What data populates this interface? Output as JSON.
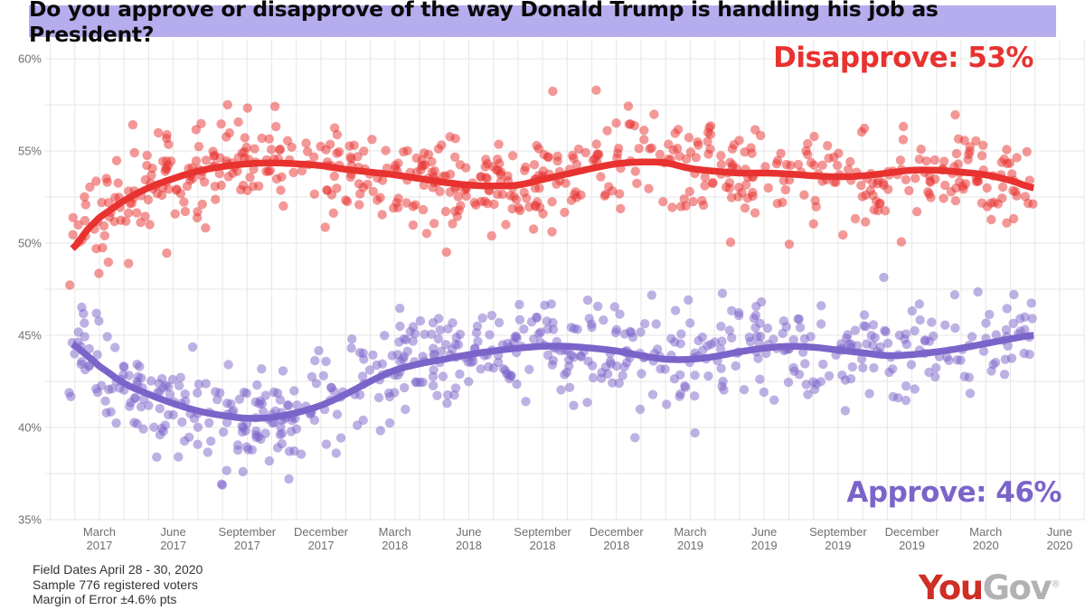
{
  "title": {
    "text": "Do you approve or disapprove of the way Donald Trump is handling his job as President?",
    "bg_color": "#b6adee"
  },
  "annotations": {
    "disapprove": {
      "label": "Disapprove: 53%",
      "color": "#e8322f"
    },
    "approve": {
      "label": "Approve: 46%",
      "color": "#7b64c9"
    }
  },
  "footer": {
    "lines": [
      "Field Dates April 28 - 30, 2020",
      "Sample 776 registered voters",
      "Margin of Error ±4.6% pts"
    ]
  },
  "logo": {
    "you": "You",
    "gov": "Gov",
    "reg": "®",
    "you_color": "#cf2e27",
    "gov_color": "#b2b2b4"
  },
  "chart_data": {
    "type": "scatter",
    "title": "Do you approve or disapprove of the way Donald Trump is handling his job as President?",
    "xlabel": "",
    "ylabel": "",
    "ylim": [
      35,
      60
    ],
    "x_unit": "months since January 2017",
    "x_range": [
      0,
      42
    ],
    "grid": {
      "show": true,
      "color": "#e6e6e6",
      "y_step_pct": 2.5,
      "x_step_months": 1
    },
    "axis_label_color": "#6f6f6f",
    "yticks": [
      {
        "v": 60,
        "label": "60%"
      },
      {
        "v": 55,
        "label": "55%"
      },
      {
        "v": 50,
        "label": "50%"
      },
      {
        "v": 45,
        "label": "45%"
      },
      {
        "v": 40,
        "label": "40%"
      },
      {
        "v": 35,
        "label": "35%"
      }
    ],
    "xticks": [
      {
        "m": 2,
        "line1": "March",
        "line2": "2017"
      },
      {
        "m": 5,
        "line1": "June",
        "line2": "2017"
      },
      {
        "m": 8,
        "line1": "September",
        "line2": "2017"
      },
      {
        "m": 11,
        "line1": "December",
        "line2": "2017"
      },
      {
        "m": 14,
        "line1": "March",
        "line2": "2018"
      },
      {
        "m": 17,
        "line1": "June",
        "line2": "2018"
      },
      {
        "m": 20,
        "line1": "September",
        "line2": "2018"
      },
      {
        "m": 23,
        "line1": "December",
        "line2": "2018"
      },
      {
        "m": 26,
        "line1": "March",
        "line2": "2019"
      },
      {
        "m": 29,
        "line1": "June",
        "line2": "2019"
      },
      {
        "m": 32,
        "line1": "September",
        "line2": "2019"
      },
      {
        "m": 35,
        "line1": "December",
        "line2": "2019"
      },
      {
        "m": 38,
        "line1": "March",
        "line2": "2020"
      },
      {
        "m": 41,
        "line1": "June",
        "line2": "2020"
      }
    ],
    "series": [
      {
        "name": "Disapprove",
        "color": "#e8322f",
        "final_value": 53,
        "trend": [
          [
            0.9,
            49.7
          ],
          [
            1.5,
            50.7
          ],
          [
            2,
            51.4
          ],
          [
            3,
            52.3
          ],
          [
            4,
            53.0
          ],
          [
            5,
            53.5
          ],
          [
            6,
            53.9
          ],
          [
            7,
            54.15
          ],
          [
            8,
            54.3
          ],
          [
            9,
            54.35
          ],
          [
            10,
            54.3
          ],
          [
            11,
            54.2
          ],
          [
            12,
            54.0
          ],
          [
            13,
            53.85
          ],
          [
            14,
            53.7
          ],
          [
            15,
            53.5
          ],
          [
            16,
            53.3
          ],
          [
            17,
            53.15
          ],
          [
            18,
            53.1
          ],
          [
            19,
            53.15
          ],
          [
            20,
            53.45
          ],
          [
            21,
            53.75
          ],
          [
            22,
            54.05
          ],
          [
            23,
            54.3
          ],
          [
            24,
            54.4
          ],
          [
            25,
            54.35
          ],
          [
            26,
            54.05
          ],
          [
            27,
            53.9
          ],
          [
            28,
            53.8
          ],
          [
            29,
            53.8
          ],
          [
            30,
            53.75
          ],
          [
            31,
            53.65
          ],
          [
            32,
            53.6
          ],
          [
            33,
            53.65
          ],
          [
            34,
            53.8
          ],
          [
            35,
            53.95
          ],
          [
            36,
            53.95
          ],
          [
            37,
            53.85
          ],
          [
            38,
            53.7
          ],
          [
            39,
            53.4
          ],
          [
            39.95,
            53.0
          ]
        ],
        "scatter_sigma": 1.32,
        "scatter_clip": [
          47.3,
          59.4
        ]
      },
      {
        "name": "Approve",
        "color": "#7b64c9",
        "final_value": 46,
        "trend": [
          [
            0.9,
            44.5
          ],
          [
            1.5,
            43.9
          ],
          [
            2,
            43.3
          ],
          [
            3,
            42.4
          ],
          [
            4,
            41.8
          ],
          [
            5,
            41.3
          ],
          [
            6,
            40.9
          ],
          [
            7,
            40.65
          ],
          [
            8,
            40.5
          ],
          [
            9,
            40.55
          ],
          [
            10,
            40.8
          ],
          [
            11,
            41.2
          ],
          [
            12,
            41.8
          ],
          [
            13,
            42.5
          ],
          [
            14,
            43.1
          ],
          [
            15,
            43.45
          ],
          [
            16,
            43.7
          ],
          [
            17,
            43.95
          ],
          [
            18,
            44.15
          ],
          [
            19,
            44.3
          ],
          [
            20,
            44.4
          ],
          [
            21,
            44.4
          ],
          [
            22,
            44.3
          ],
          [
            23,
            44.15
          ],
          [
            24,
            43.9
          ],
          [
            25,
            43.7
          ],
          [
            26,
            43.7
          ],
          [
            27,
            43.85
          ],
          [
            28,
            44.1
          ],
          [
            29,
            44.3
          ],
          [
            30,
            44.4
          ],
          [
            31,
            44.35
          ],
          [
            32,
            44.2
          ],
          [
            33,
            44.05
          ],
          [
            34,
            43.9
          ],
          [
            35,
            43.95
          ],
          [
            36,
            44.1
          ],
          [
            37,
            44.3
          ],
          [
            38,
            44.55
          ],
          [
            39,
            44.8
          ],
          [
            39.95,
            45.0
          ]
        ],
        "scatter_sigma": 1.4,
        "scatter_clip": [
          35.8,
          49.2
        ]
      }
    ],
    "scatter": {
      "note": "individual weekly poll results, shown jittered around the smoothed trend",
      "points_per_series": 620,
      "m_range": [
        0.75,
        39.93
      ],
      "radius": 5.2,
      "opacity": 0.5,
      "seed": 1337
    },
    "legend_position": "annotations-on-plot"
  }
}
